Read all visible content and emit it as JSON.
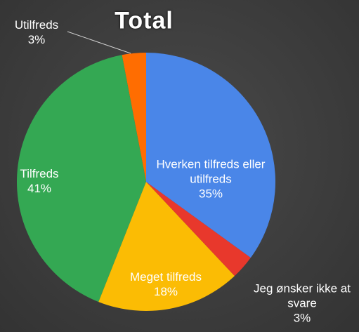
{
  "chart_data": {
    "type": "pie",
    "title": "Total",
    "categories": [
      "Hverken tilfreds eller utilfreds",
      "Jeg ønsker ikke at svare",
      "Meget tilfreds",
      "Tilfreds",
      "Utilfreds"
    ],
    "values": [
      35,
      3,
      18,
      41,
      3
    ],
    "value_labels": [
      "35%",
      "3%",
      "18%",
      "41%",
      "3%"
    ],
    "colors": [
      "#4a86e8",
      "#e8382c",
      "#fbbc04",
      "#34a853",
      "#ff6d01"
    ]
  }
}
